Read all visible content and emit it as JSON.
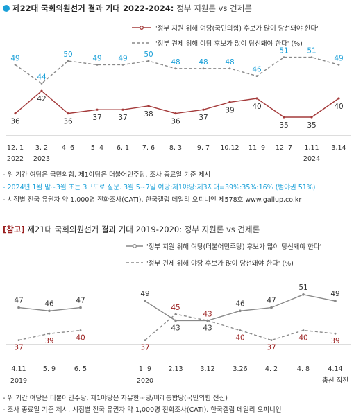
{
  "chart_data": [
    {
      "type": "line",
      "title": "제22대 국회의원선거 결과 기대 2022-2024:",
      "subtitle": "정부 지원론 vs 견제론",
      "categories": [
        "12. 1",
        "3. 2",
        "4. 6",
        "5. 4",
        "6. 1",
        "7. 6",
        "8. 3",
        "9. 7",
        "10.12",
        "11. 9",
        "12. 7",
        "1.11",
        "3.14"
      ],
      "year_labels": [
        {
          "index": 0,
          "text": "2022"
        },
        {
          "index": 1,
          "text": "2023"
        },
        {
          "index": 11,
          "text": "2024"
        }
      ],
      "series": [
        {
          "name": "'정부 지원 위해 여당(국민의힘) 후보가 많이 당선돼야 한다'",
          "color": "#a43a3a",
          "label_color": "#333333",
          "style": "solid",
          "values": [
            36,
            42,
            36,
            37,
            37,
            38,
            36,
            37,
            39,
            40,
            35,
            35,
            40
          ]
        },
        {
          "name": "'정부 견제 위해 야당 후보가 많이 당선돼야 한다' (%)",
          "color": "#888888",
          "label_color": "#1aa0d8",
          "style": "dashed",
          "values": [
            49,
            44,
            50,
            49,
            49,
            50,
            48,
            48,
            48,
            46,
            51,
            51,
            49
          ]
        }
      ],
      "ylim": [
        30,
        56
      ]
    },
    {
      "type": "line",
      "title": "제21대 국회의원선거 결과 기대 2019-2020:",
      "subtitle": "정부 지원론 vs 견제론",
      "tag": "[참고]",
      "categories": [
        "4.11",
        "5. 9",
        "6. 5",
        "1. 9",
        "2.13",
        "3.12",
        "3.26",
        "4. 2",
        "4. 8",
        "4.14"
      ],
      "year_labels": [
        {
          "index": 0,
          "text": "2019"
        },
        {
          "index": 3,
          "text": "2020"
        },
        {
          "index": 9,
          "text": "총선 직전"
        }
      ],
      "series": [
        {
          "name": "'정부 지원 위해 여당(더불어민주당) 후보가 많이 당선돼야 한다'",
          "color": "#888888",
          "label_color": "#333333",
          "style": "solid",
          "values": [
            47,
            46,
            47,
            49,
            43,
            43,
            46,
            47,
            51,
            49
          ]
        },
        {
          "name": "'정부 견제 위해 야당 후보가 많이 당선돼야 한다' (%)",
          "color": "#888888",
          "label_color": "#9a1f1f",
          "style": "dashed",
          "values": [
            37,
            39,
            40,
            37,
            45,
            43,
            40,
            37,
            40,
            39
          ]
        }
      ],
      "ylim": [
        30,
        56
      ]
    }
  ],
  "notes1": [
    "- 위 기간 여당은 국민의힘, 제1야당은 더불어민주당. 조사 종료일 기준 제시",
    "- 2024년 1월 말~3월 초는 3구도로 질문. 3월 5~7일 여당:제1야당:제3지대=39%:35%:16% (범야권 51%)",
    "- 시점별 전국 유권자 약 1,000명 전화조사(CATI). 한국갤럽 데일리 오피니언 제578호 www.gallup.co.kr"
  ],
  "notes2": [
    "- 위 기간 여당은 더불어민주당, 제1야당은 자유한국당/미래통합당(국민의힘 전신)",
    "- 조사 종료일 기준 제시. 시점별 전국 유권자 약 1,000명 전화조사(CATI). 한국갤럽 데일리 오피니언"
  ]
}
